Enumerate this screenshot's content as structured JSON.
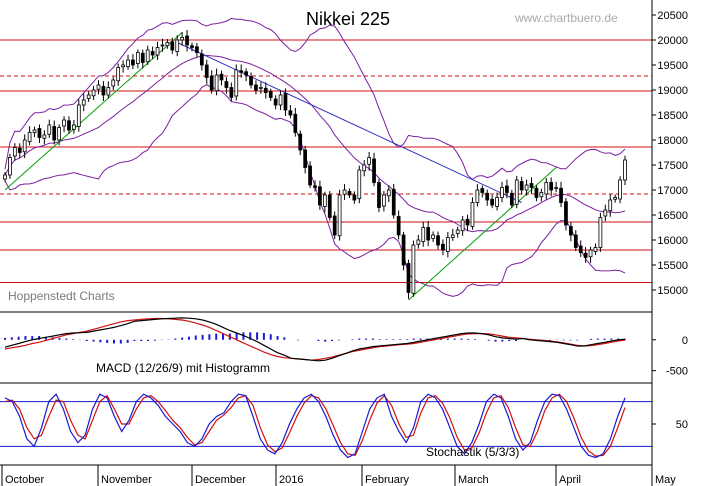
{
  "chart_data": {
    "type": "candlestick",
    "title": "Nikkei 225",
    "watermark": "www.chartbuero.de",
    "source_label": "Hoppenstedt Charts",
    "x_labels": [
      "October",
      "November",
      "December",
      "2016",
      "February",
      "March",
      "April",
      "May"
    ],
    "price_panel": {
      "y_ticks": [
        15000,
        15500,
        16000,
        16500,
        17000,
        17500,
        18000,
        18500,
        19000,
        19500,
        20000,
        20500
      ],
      "ylim": [
        14600,
        20800
      ],
      "horizontal_lines": [
        {
          "value": 20000,
          "style": "solid"
        },
        {
          "value": 19280,
          "style": "dashed"
        },
        {
          "value": 18980,
          "style": "solid"
        },
        {
          "value": 17860,
          "style": "solid"
        },
        {
          "value": 16920,
          "style": "dashed"
        },
        {
          "value": 16360,
          "style": "solid"
        },
        {
          "value": 15800,
          "style": "solid"
        },
        {
          "value": 15150,
          "style": "solid"
        }
      ],
      "closes": [
        17300,
        17650,
        17850,
        17750,
        18000,
        18150,
        18200,
        18050,
        18100,
        18300,
        18000,
        18250,
        18400,
        18200,
        18300,
        18700,
        18800,
        18900,
        19000,
        19100,
        18900,
        19050,
        19200,
        19450,
        19500,
        19600,
        19500,
        19750,
        19550,
        19800,
        19700,
        19850,
        19900,
        19950,
        19800,
        20000,
        20050,
        19900,
        19850,
        19750,
        19500,
        19250,
        19000,
        19300,
        19200,
        19050,
        18850,
        19400,
        19350,
        19300,
        19100,
        19000,
        19050,
        18950,
        18850,
        18700,
        18900,
        18600,
        18500,
        18150,
        17800,
        17450,
        17100,
        17050,
        16700,
        16900,
        16450,
        16100,
        16900,
        17000,
        16900,
        16800,
        17400,
        17500,
        17650,
        17150,
        16650,
        16900,
        17000,
        16500,
        16100,
        15500,
        14950,
        15900,
        16000,
        16250,
        16000,
        16100,
        15900,
        15800,
        16050,
        16100,
        16200,
        16400,
        16300,
        16750,
        17000,
        16950,
        16800,
        16700,
        16850,
        17050,
        16950,
        16700,
        17200,
        17000,
        17100,
        17050,
        16850,
        16950,
        17150,
        17000,
        17050,
        16750,
        16300,
        16100,
        15850,
        15750,
        15650,
        15800,
        15850,
        16450,
        16600,
        16800,
        16850,
        17200,
        17600
      ],
      "trendlines": [
        {
          "from": [
            0,
            17000
          ],
          "to": [
            36,
            20150
          ],
          "color": "#00a000"
        },
        {
          "from": [
            82,
            14800
          ],
          "to": [
            112,
            17450
          ],
          "color": "#00a000"
        },
        {
          "from": [
            35,
            19950
          ],
          "to": [
            105,
            16750
          ],
          "color": "#3030c0"
        }
      ]
    },
    "macd_panel": {
      "label": "MACD (12/26/9) mit Histogramm",
      "y_ticks": [
        -500,
        0
      ],
      "ylim": [
        -700,
        450
      ],
      "macd": [
        -120,
        -90,
        -60,
        -30,
        0,
        20,
        40,
        60,
        80,
        100,
        110,
        115,
        120,
        140,
        160,
        180,
        200,
        230,
        260,
        300,
        310,
        320,
        330,
        340,
        345,
        350,
        355,
        350,
        340,
        320,
        290,
        250,
        200,
        150,
        110,
        70,
        20,
        -30,
        -90,
        -150,
        -210,
        -250,
        -300,
        -310,
        -320,
        -330,
        -340,
        -330,
        -300,
        -260,
        -220,
        -180,
        -150,
        -130,
        -110,
        -100,
        -90,
        -80,
        -70,
        -60,
        -40,
        -20,
        0,
        20,
        40,
        60,
        80,
        100,
        110,
        110,
        100,
        80,
        50,
        30,
        20,
        10,
        20,
        0,
        -10,
        -20,
        -30,
        -40,
        -60,
        -80,
        -100,
        -100,
        -80,
        -60,
        -40,
        -20,
        0,
        10
      ],
      "signal": [
        -150,
        -130,
        -110,
        -90,
        -60,
        -40,
        -10,
        20,
        50,
        80,
        100,
        120,
        140,
        170,
        200,
        230,
        260,
        290,
        310,
        320,
        330,
        340,
        345,
        345,
        340,
        330,
        320,
        300,
        270,
        240,
        200,
        150,
        100,
        50,
        0,
        -50,
        -100,
        -150,
        -200,
        -240,
        -270,
        -290,
        -300,
        -310,
        -320,
        -330,
        -320,
        -300,
        -280,
        -250,
        -220,
        -190,
        -170,
        -150,
        -130,
        -110,
        -100,
        -90,
        -80,
        -70,
        -60,
        -40,
        -20,
        0,
        20,
        40,
        60,
        80,
        95,
        100,
        100,
        95,
        80,
        60,
        40,
        30,
        20,
        10,
        0,
        -10,
        -20,
        -35,
        -50,
        -70,
        -90,
        -100,
        -95,
        -80,
        -60,
        -40,
        -20,
        -5
      ],
      "histogram": [
        30,
        40,
        50,
        60,
        60,
        60,
        50,
        40,
        30,
        20,
        10,
        -5,
        -20,
        -30,
        -40,
        -50,
        -60,
        -60,
        -50,
        -20,
        -20,
        -20,
        -15,
        -5,
        5,
        20,
        35,
        50,
        70,
        80,
        90,
        100,
        100,
        100,
        110,
        120,
        120,
        120,
        110,
        90,
        60,
        40,
        0,
        -10,
        0,
        0,
        -20,
        -30,
        -20,
        -10,
        0,
        10,
        20,
        20,
        20,
        10,
        10,
        10,
        10,
        10,
        20,
        20,
        20,
        20,
        20,
        20,
        20,
        20,
        15,
        10,
        0,
        -15,
        -30,
        -30,
        -20,
        -20,
        0,
        -10,
        -10,
        -10,
        -10,
        -5,
        -10,
        -10,
        -10,
        0,
        15,
        20,
        20,
        20,
        20,
        15
      ]
    },
    "stoch_panel": {
      "label": "Stochastik (5/3/3)",
      "y_ticks": [
        50
      ],
      "ylim": [
        -5,
        105
      ],
      "levels": [
        80,
        20
      ],
      "k": [
        85,
        80,
        60,
        30,
        20,
        45,
        80,
        90,
        70,
        40,
        25,
        35,
        70,
        90,
        85,
        60,
        40,
        55,
        80,
        90,
        85,
        75,
        60,
        50,
        40,
        25,
        20,
        30,
        50,
        60,
        65,
        80,
        90,
        88,
        60,
        30,
        15,
        10,
        25,
        50,
        70,
        85,
        90,
        80,
        60,
        35,
        15,
        5,
        10,
        40,
        70,
        85,
        90,
        60,
        40,
        25,
        45,
        80,
        90,
        85,
        70,
        45,
        20,
        10,
        25,
        50,
        80,
        90,
        85,
        60,
        30,
        15,
        25,
        55,
        80,
        90,
        88,
        70,
        45,
        20,
        8,
        5,
        10,
        30,
        60,
        85
      ],
      "d": [
        80,
        82,
        70,
        45,
        30,
        35,
        60,
        82,
        80,
        55,
        35,
        30,
        55,
        80,
        88,
        70,
        50,
        50,
        70,
        85,
        88,
        80,
        68,
        55,
        45,
        32,
        22,
        25,
        40,
        55,
        62,
        72,
        85,
        88,
        75,
        45,
        22,
        13,
        18,
        38,
        60,
        78,
        88,
        85,
        70,
        48,
        25,
        10,
        8,
        28,
        55,
        78,
        88,
        75,
        50,
        32,
        35,
        65,
        85,
        88,
        78,
        58,
        32,
        15,
        18,
        38,
        65,
        85,
        88,
        72,
        45,
        22,
        20,
        40,
        68,
        85,
        90,
        80,
        58,
        32,
        14,
        7,
        8,
        20,
        45,
        72
      ]
    }
  }
}
